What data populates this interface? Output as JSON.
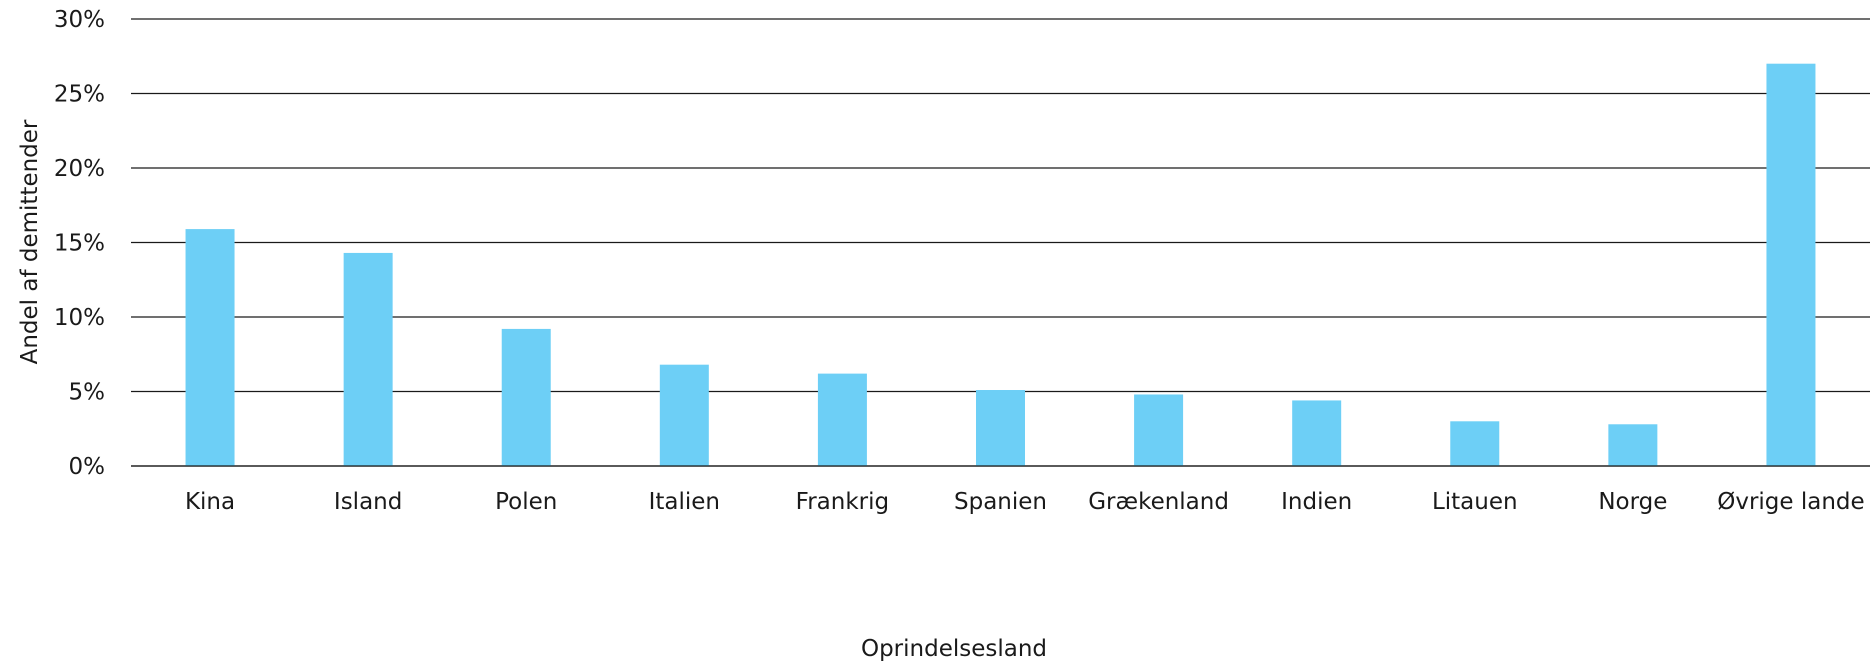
{
  "chart_data": {
    "type": "bar",
    "xlabel": "Oprindelsesland",
    "ylabel": "Andel af demittender",
    "categories": [
      "Kina",
      "Island",
      "Polen",
      "Italien",
      "Frankrig",
      "Spanien",
      "Grækenland",
      "Indien",
      "Litauen",
      "Norge",
      "Øvrige lande"
    ],
    "values": [
      15.9,
      14.3,
      9.2,
      6.8,
      6.2,
      5.1,
      4.8,
      4.4,
      3.0,
      2.8,
      27.0
    ],
    "ylim": [
      0,
      30
    ],
    "yticks": [
      0,
      5,
      10,
      15,
      20,
      25,
      30
    ],
    "ytick_labels": [
      "0%",
      "5%",
      "10%",
      "15%",
      "20%",
      "25%",
      "30%"
    ],
    "grid": true,
    "legend": "none",
    "colors": {
      "bar": "#6dcff6",
      "grid": "#1a1a1a",
      "text": "#1a1a1a"
    }
  }
}
